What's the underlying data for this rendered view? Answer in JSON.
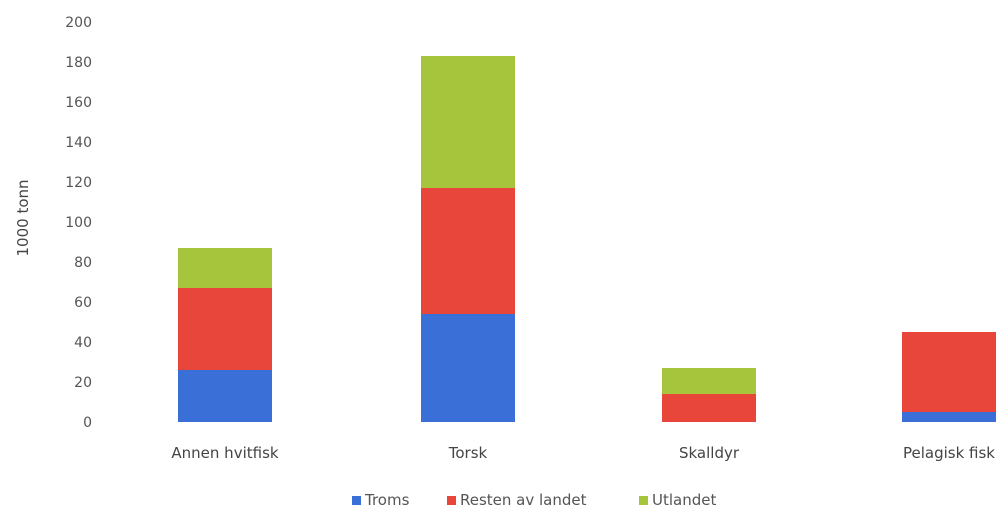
{
  "chart_data": {
    "type": "bar",
    "stacked": true,
    "ylabel": "1000 tonn",
    "ylim": [
      0,
      200
    ],
    "yticks": [
      0,
      20,
      40,
      60,
      80,
      100,
      120,
      140,
      160,
      180,
      200
    ],
    "grid": false,
    "legend_position": "bottom",
    "categories": [
      "Annen hvitfisk",
      "Torsk",
      "Skalldyr",
      "Pelagisk fisk"
    ],
    "series": [
      {
        "name": "Troms",
        "color": "#3a6fd8",
        "values": [
          26,
          54,
          0,
          5
        ]
      },
      {
        "name": "Resten av landet",
        "color": "#e8463a",
        "values": [
          41,
          63,
          14,
          40
        ]
      },
      {
        "name": "Utlandet",
        "color": "#a6c43c",
        "values": [
          20,
          66,
          13,
          0
        ]
      }
    ]
  }
}
